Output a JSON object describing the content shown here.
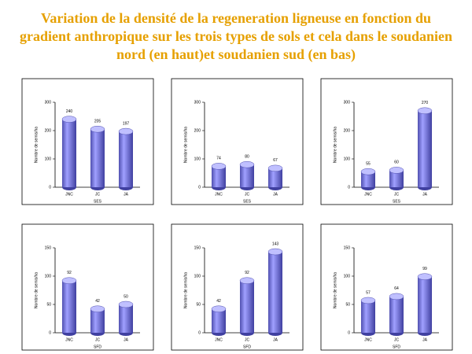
{
  "title": "Variation de la densité de la regeneration ligneuse en fonction du gradient anthropique  sur les trois types de sols et cela dans le soudanien nord (en haut)et soudanien sud (en bas)",
  "chart_data": [
    {
      "type": "bar",
      "ylabel": "Nombre de semis/ha",
      "xlabel": "SES",
      "categories": [
        "JNC",
        "JC",
        "JA"
      ],
      "values": [
        240,
        205,
        197
      ],
      "color": "#8080e0",
      "ylim": [
        0,
        300
      ],
      "yticks": [
        0,
        100,
        200,
        300
      ]
    },
    {
      "type": "bar",
      "ylabel": "Nombre de semis/ha",
      "xlabel": "SES",
      "categories": [
        "JNC",
        "JC",
        "JA"
      ],
      "values": [
        74,
        80,
        67
      ],
      "color": "#8080e0",
      "ylim": [
        0,
        300
      ],
      "yticks": [
        0,
        100,
        200,
        300
      ]
    },
    {
      "type": "bar",
      "ylabel": "Nombre de semis/ha",
      "xlabel": "SES",
      "categories": [
        "JNC",
        "JC",
        "JA"
      ],
      "values": [
        55,
        60,
        270
      ],
      "color": "#8080e0",
      "ylim": [
        0,
        300
      ],
      "yticks": [
        0,
        100,
        200,
        300
      ]
    },
    {
      "type": "bar",
      "ylabel": "Nombre de semis/ha",
      "xlabel": "SFD",
      "categories": [
        "JNC",
        "JC",
        "JA"
      ],
      "values": [
        92,
        42,
        50
      ],
      "color": "#8080e0",
      "ylim": [
        0,
        150
      ],
      "yticks": [
        0,
        50,
        100,
        150
      ]
    },
    {
      "type": "bar",
      "ylabel": "Nombre de semis/ha",
      "xlabel": "SFD",
      "categories": [
        "JNC",
        "JC",
        "JA"
      ],
      "values": [
        42,
        92,
        143
      ],
      "color": "#8080e0",
      "ylim": [
        0,
        150
      ],
      "yticks": [
        0,
        50,
        100,
        150
      ]
    },
    {
      "type": "bar",
      "ylabel": "Nombre de semis/ha",
      "xlabel": "SFD",
      "categories": [
        "JNC",
        "JC",
        "JA"
      ],
      "values": [
        57,
        64,
        99
      ],
      "color": "#8080e0",
      "ylim": [
        0,
        150
      ],
      "yticks": [
        0,
        50,
        100,
        150
      ]
    }
  ]
}
